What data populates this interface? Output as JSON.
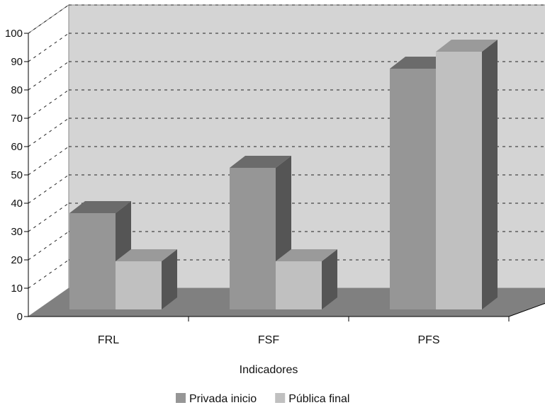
{
  "chart_data": {
    "type": "bar",
    "style": "3d-clustered-column",
    "title": "",
    "xlabel": "Indicadores",
    "ylabel": "",
    "categories": [
      "FRL",
      "FSF",
      "PFS"
    ],
    "series": [
      {
        "name": "Privada inicio",
        "values": [
          34,
          50,
          85
        ],
        "color": "#969696"
      },
      {
        "name": "Pública final",
        "values": [
          17,
          17,
          91
        ],
        "color": "#c0c0c0"
      }
    ],
    "ylim": [
      0,
      100
    ],
    "yticks": [
      0,
      10,
      20,
      30,
      40,
      50,
      60,
      70,
      80,
      90,
      100
    ],
    "grid": true,
    "legend": "bottom-center",
    "colors": {
      "back_wall": "#d4d4d4",
      "side_wall": "#ffffff",
      "floor": "#808080",
      "bar_dark_side": "#555555",
      "bar_top_1": "#6b6b6b",
      "bar_top_2": "#9a9a9a"
    }
  }
}
